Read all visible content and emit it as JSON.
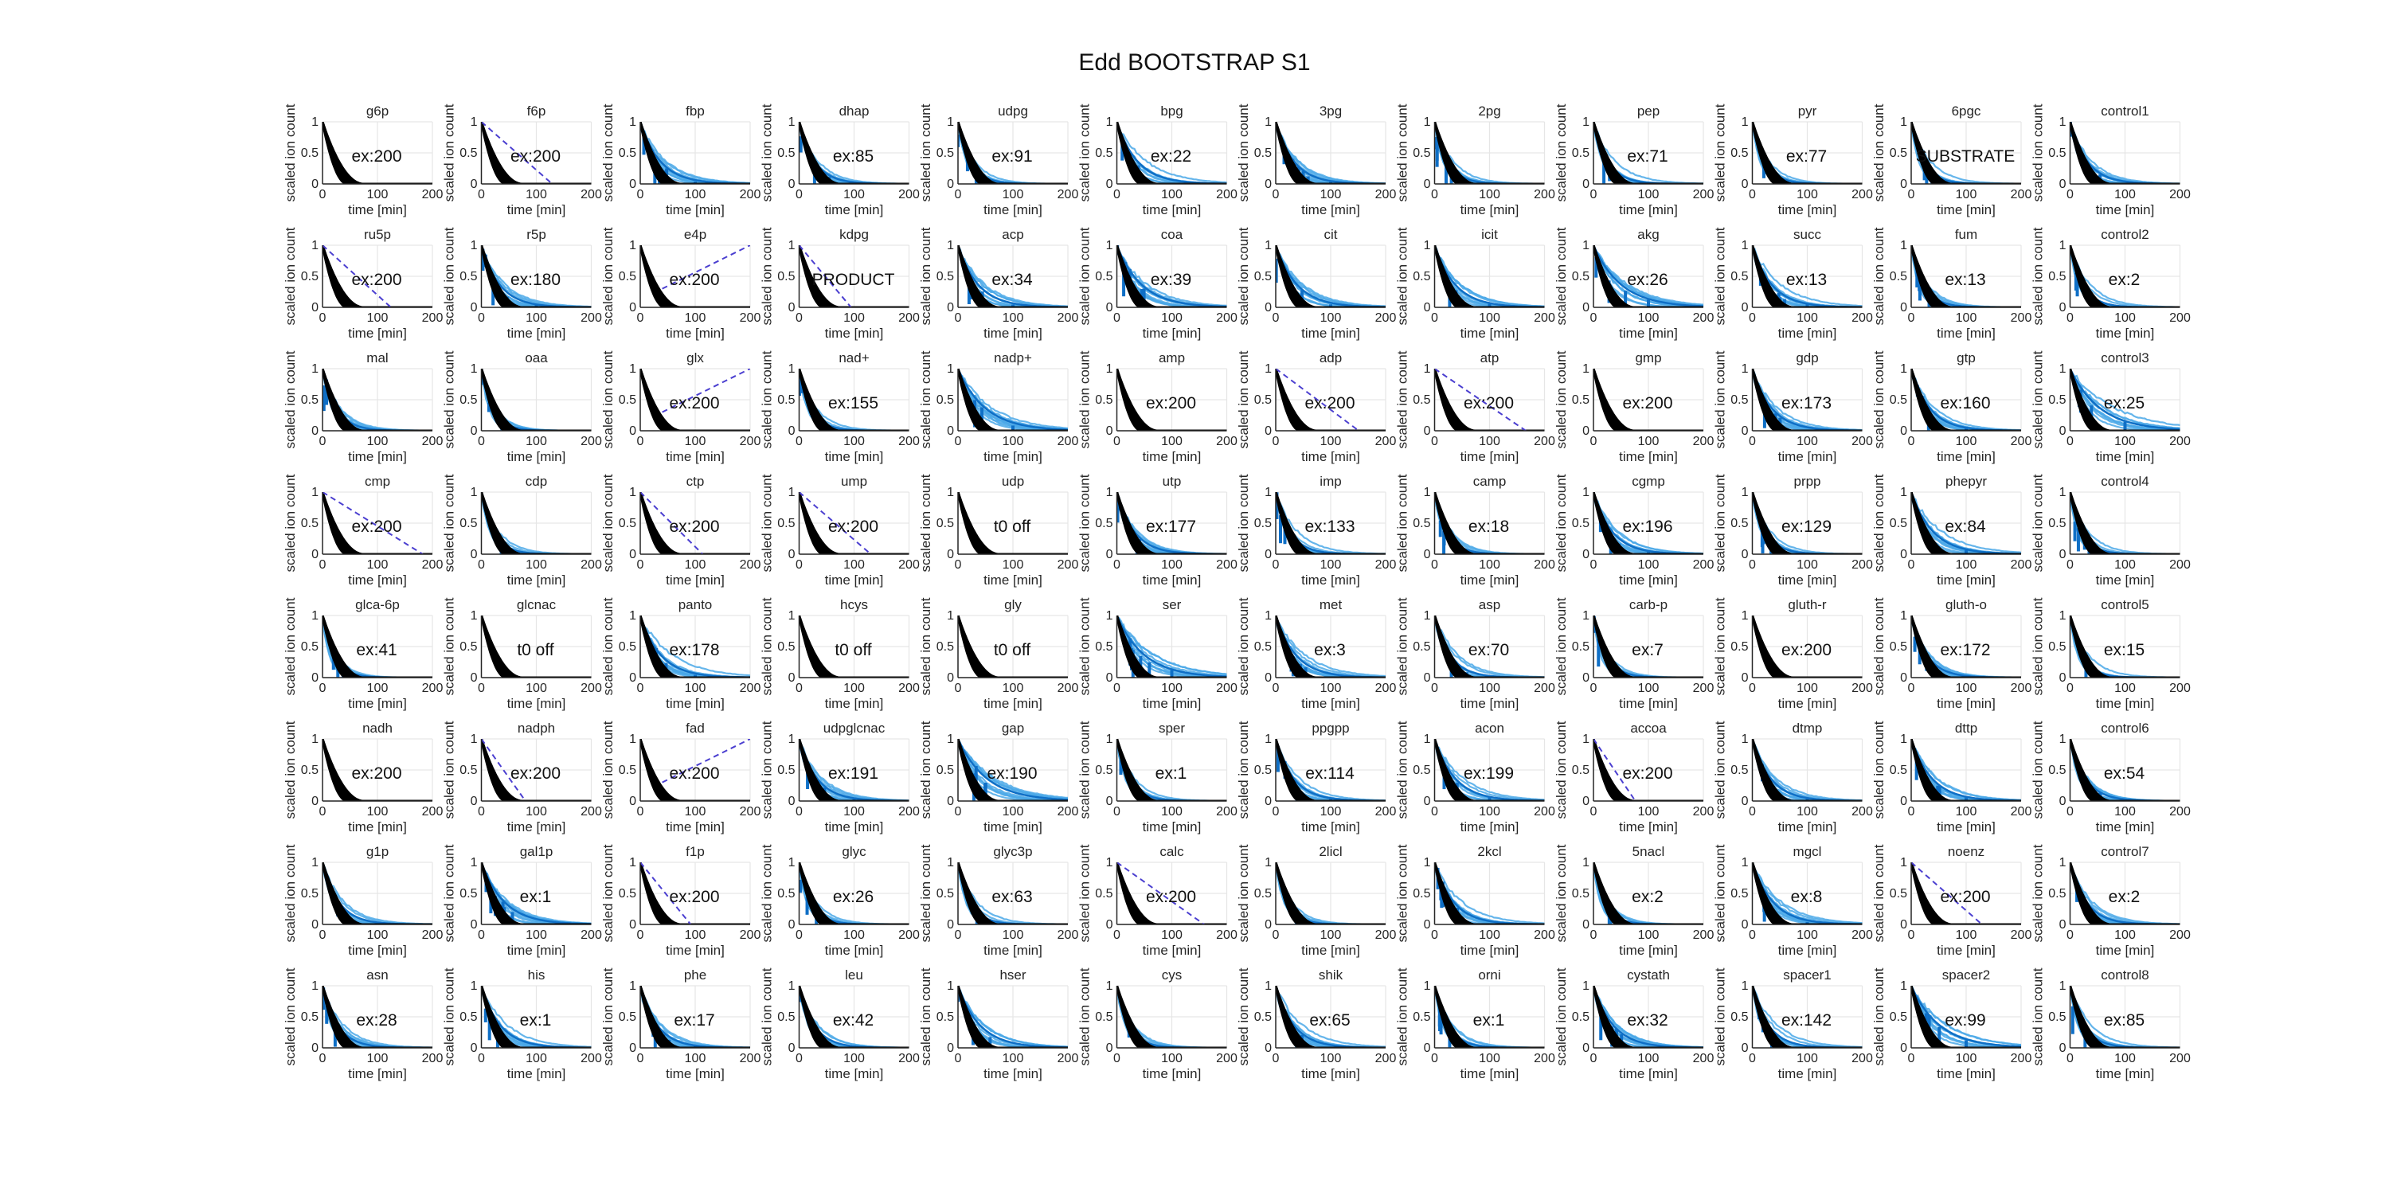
{
  "figure": {
    "title": "Edd BOOTSTRAP S1"
  },
  "colors": {
    "model_black": "#000000",
    "bootstrap_blue": "#4aa8e8",
    "data_blue": "#0f6fc6",
    "dashed_purple": "#4b3fd0",
    "grid": "#e6e6e6",
    "axis": "#262626"
  },
  "chart_data": {
    "type": "line",
    "layout": "small-multiples",
    "rows": 8,
    "cols": 12,
    "xlabel": "time [min]",
    "ylabel": "scaled ion count",
    "xlim": [
      0,
      200
    ],
    "ylim": [
      0,
      1
    ],
    "xticks": [
      "0",
      "100",
      "200"
    ],
    "yticks": [
      "0",
      "0.5",
      "1"
    ],
    "grid": true,
    "panels": [
      {
        "title": "g6p",
        "annotation": "ex:200",
        "style": "black"
      },
      {
        "title": "f6p",
        "annotation": "ex:200",
        "style": "dashed"
      },
      {
        "title": "fbp",
        "annotation": "",
        "style": "blue"
      },
      {
        "title": "dhap",
        "annotation": "ex:85",
        "style": "blue"
      },
      {
        "title": "udpg",
        "annotation": "ex:91",
        "style": "blue"
      },
      {
        "title": "bpg",
        "annotation": "ex:22",
        "style": "blue"
      },
      {
        "title": "3pg",
        "annotation": "",
        "style": "blue"
      },
      {
        "title": "2pg",
        "annotation": "",
        "style": "blue"
      },
      {
        "title": "pep",
        "annotation": "ex:71",
        "style": "blue"
      },
      {
        "title": "pyr",
        "annotation": "ex:77",
        "style": "blue"
      },
      {
        "title": "6pgc",
        "annotation": "SUBSTRATE",
        "style": "blue"
      },
      {
        "title": "control1",
        "annotation": "",
        "style": "blue"
      },
      {
        "title": "ru5p",
        "annotation": "ex:200",
        "style": "dashed"
      },
      {
        "title": "r5p",
        "annotation": "ex:180",
        "style": "blue"
      },
      {
        "title": "e4p",
        "annotation": "ex:200",
        "style": "dashed"
      },
      {
        "title": "kdpg",
        "annotation": "PRODUCT",
        "style": "dashed"
      },
      {
        "title": "acp",
        "annotation": "ex:34",
        "style": "blue"
      },
      {
        "title": "coa",
        "annotation": "ex:39",
        "style": "blue"
      },
      {
        "title": "cit",
        "annotation": "",
        "style": "blue"
      },
      {
        "title": "icit",
        "annotation": "",
        "style": "blue"
      },
      {
        "title": "akg",
        "annotation": "ex:26",
        "style": "blue"
      },
      {
        "title": "succ",
        "annotation": "ex:13",
        "style": "blue"
      },
      {
        "title": "fum",
        "annotation": "ex:13",
        "style": "blue"
      },
      {
        "title": "control2",
        "annotation": "ex:2",
        "style": "blue"
      },
      {
        "title": "mal",
        "annotation": "",
        "style": "blue"
      },
      {
        "title": "oaa",
        "annotation": "",
        "style": "blue"
      },
      {
        "title": "glx",
        "annotation": "ex:200",
        "style": "dashed"
      },
      {
        "title": "nad+",
        "annotation": "ex:155",
        "style": "blue"
      },
      {
        "title": "nadp+",
        "annotation": "",
        "style": "blue"
      },
      {
        "title": "amp",
        "annotation": "ex:200",
        "style": "black"
      },
      {
        "title": "adp",
        "annotation": "ex:200",
        "style": "dashed"
      },
      {
        "title": "atp",
        "annotation": "ex:200",
        "style": "dashed"
      },
      {
        "title": "gmp",
        "annotation": "ex:200",
        "style": "black"
      },
      {
        "title": "gdp",
        "annotation": "ex:173",
        "style": "blue"
      },
      {
        "title": "gtp",
        "annotation": "ex:160",
        "style": "blue"
      },
      {
        "title": "control3",
        "annotation": "ex:25",
        "style": "blue"
      },
      {
        "title": "cmp",
        "annotation": "ex:200",
        "style": "dashed"
      },
      {
        "title": "cdp",
        "annotation": "",
        "style": "blue"
      },
      {
        "title": "ctp",
        "annotation": "ex:200",
        "style": "dashed"
      },
      {
        "title": "ump",
        "annotation": "ex:200",
        "style": "dashed"
      },
      {
        "title": "udp",
        "annotation": "t0 off",
        "style": "black"
      },
      {
        "title": "utp",
        "annotation": "ex:177",
        "style": "blue"
      },
      {
        "title": "imp",
        "annotation": "ex:133",
        "style": "blue"
      },
      {
        "title": "camp",
        "annotation": "ex:18",
        "style": "blue"
      },
      {
        "title": "cgmp",
        "annotation": "ex:196",
        "style": "blue"
      },
      {
        "title": "prpp",
        "annotation": "ex:129",
        "style": "blue"
      },
      {
        "title": "phepyr",
        "annotation": "ex:84",
        "style": "blue"
      },
      {
        "title": "control4",
        "annotation": "",
        "style": "blue"
      },
      {
        "title": "glca-6p",
        "annotation": "ex:41",
        "style": "blue"
      },
      {
        "title": "glcnac",
        "annotation": "t0 off",
        "style": "black"
      },
      {
        "title": "panto",
        "annotation": "ex:178",
        "style": "blue"
      },
      {
        "title": "hcys",
        "annotation": "t0 off",
        "style": "black"
      },
      {
        "title": "gly",
        "annotation": "t0 off",
        "style": "black"
      },
      {
        "title": "ser",
        "annotation": "",
        "style": "blue"
      },
      {
        "title": "met",
        "annotation": "ex:3",
        "style": "blue"
      },
      {
        "title": "asp",
        "annotation": "ex:70",
        "style": "blue"
      },
      {
        "title": "carb-p",
        "annotation": "ex:7",
        "style": "blue"
      },
      {
        "title": "gluth-r",
        "annotation": "ex:200",
        "style": "black"
      },
      {
        "title": "gluth-o",
        "annotation": "ex:172",
        "style": "blue"
      },
      {
        "title": "control5",
        "annotation": "ex:15",
        "style": "blue"
      },
      {
        "title": "nadh",
        "annotation": "ex:200",
        "style": "black"
      },
      {
        "title": "nadph",
        "annotation": "ex:200",
        "style": "dashed"
      },
      {
        "title": "fad",
        "annotation": "ex:200",
        "style": "dashed"
      },
      {
        "title": "udpglcnac",
        "annotation": "ex:191",
        "style": "blue"
      },
      {
        "title": "gap",
        "annotation": "ex:190",
        "style": "blue"
      },
      {
        "title": "sper",
        "annotation": "ex:1",
        "style": "blue"
      },
      {
        "title": "ppgpp",
        "annotation": "ex:114",
        "style": "blue"
      },
      {
        "title": "acon",
        "annotation": "ex:199",
        "style": "blue"
      },
      {
        "title": "accoa",
        "annotation": "ex:200",
        "style": "dashed"
      },
      {
        "title": "dtmp",
        "annotation": "",
        "style": "blue"
      },
      {
        "title": "dttp",
        "annotation": "",
        "style": "blue"
      },
      {
        "title": "control6",
        "annotation": "ex:54",
        "style": "blue"
      },
      {
        "title": "g1p",
        "annotation": "",
        "style": "blue"
      },
      {
        "title": "gal1p",
        "annotation": "ex:1",
        "style": "blue"
      },
      {
        "title": "f1p",
        "annotation": "ex:200",
        "style": "dashed"
      },
      {
        "title": "glyc",
        "annotation": "ex:26",
        "style": "blue"
      },
      {
        "title": "glyc3p",
        "annotation": "ex:63",
        "style": "blue"
      },
      {
        "title": "calc",
        "annotation": "ex:200",
        "style": "dashed"
      },
      {
        "title": "2licl",
        "annotation": "",
        "style": "blue"
      },
      {
        "title": "2kcl",
        "annotation": "",
        "style": "blue"
      },
      {
        "title": "5nacl",
        "annotation": "ex:2",
        "style": "blue"
      },
      {
        "title": "mgcl",
        "annotation": "ex:8",
        "style": "blue"
      },
      {
        "title": "noenz",
        "annotation": "ex:200",
        "style": "dashed"
      },
      {
        "title": "control7",
        "annotation": "ex:2",
        "style": "blue"
      },
      {
        "title": "asn",
        "annotation": "ex:28",
        "style": "blue"
      },
      {
        "title": "his",
        "annotation": "ex:1",
        "style": "blue"
      },
      {
        "title": "phe",
        "annotation": "ex:17",
        "style": "blue"
      },
      {
        "title": "leu",
        "annotation": "ex:42",
        "style": "blue"
      },
      {
        "title": "hser",
        "annotation": "",
        "style": "blue"
      },
      {
        "title": "cys",
        "annotation": "",
        "style": "blue"
      },
      {
        "title": "shik",
        "annotation": "ex:65",
        "style": "blue"
      },
      {
        "title": "orni",
        "annotation": "ex:1",
        "style": "blue"
      },
      {
        "title": "cystath",
        "annotation": "ex:32",
        "style": "blue"
      },
      {
        "title": "spacer1",
        "annotation": "ex:142",
        "style": "blue"
      },
      {
        "title": "spacer2",
        "annotation": "ex:99",
        "style": "blue"
      },
      {
        "title": "control8",
        "annotation": "ex:85",
        "style": "blue"
      }
    ]
  }
}
